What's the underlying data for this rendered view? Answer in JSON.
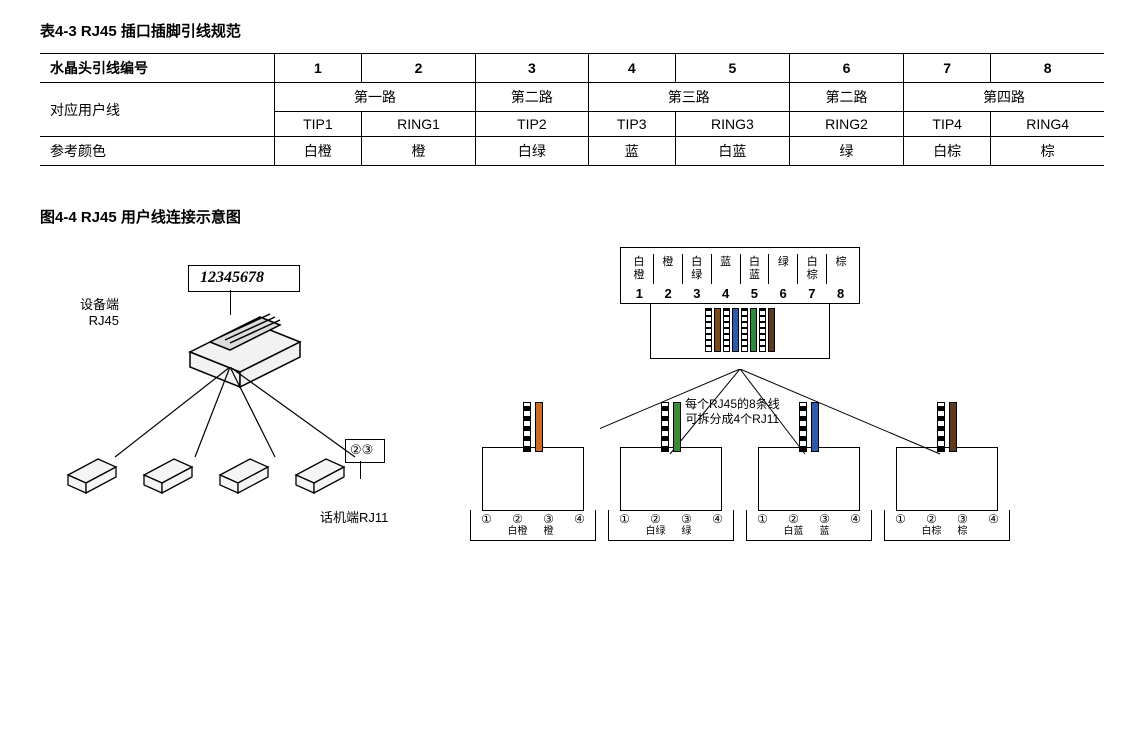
{
  "table_title": "表4-3  RJ45 插口插脚引线规范",
  "spec": {
    "head_label": "水晶头引线编号",
    "pins": [
      "1",
      "2",
      "3",
      "4",
      "5",
      "6",
      "7",
      "8"
    ],
    "row2_label": "对应用户线",
    "routes": [
      "第一路",
      "第二路",
      "第三路",
      "第二路",
      "第四路"
    ],
    "route_spans": [
      2,
      1,
      2,
      1,
      2
    ],
    "signals": [
      "TIP1",
      "RING1",
      "TIP2",
      "TIP3",
      "RING3",
      "RING2",
      "TIP4",
      "RING4"
    ],
    "row4_label": "参考颜色",
    "colors": [
      "白橙",
      "橙",
      "白绿",
      "蓝",
      "白蓝",
      "绿",
      "白棕",
      "棕"
    ]
  },
  "figure_title": "图4-4  RJ45 用户线连接示意图",
  "left": {
    "device_label_l1": "设备端",
    "device_label_l2": "RJ45",
    "pin_label": "12345678",
    "circled_23": "②③",
    "phone_label": "话机端RJ11"
  },
  "right": {
    "port_colors_l1": [
      "白",
      "橙",
      "白",
      "蓝",
      "白",
      "绿",
      "白",
      "棕"
    ],
    "port_colors_l2": [
      "橙",
      "",
      "绿",
      "",
      "蓝",
      "",
      "棕",
      ""
    ],
    "port_nums": [
      "1",
      "2",
      "3",
      "4",
      "5",
      "6",
      "7",
      "8"
    ],
    "wire_fills": [
      "#fff",
      "#7a4a1a",
      "#fff",
      "#2e5aac",
      "#fff",
      "#2e8b3d",
      "#fff",
      "#5b3a1e"
    ],
    "wire_stripes": [
      true,
      false,
      true,
      false,
      true,
      false,
      true,
      false
    ],
    "note_l1": "每个RJ45的8条线",
    "note_l2": "可拆分成4个RJ11",
    "rj11": [
      {
        "colors": [
          "",
          "白橙",
          "橙",
          ""
        ],
        "w2": "stripe",
        "w3": "#c86a2a"
      },
      {
        "colors": [
          "",
          "白绿",
          "绿",
          ""
        ],
        "w2": "stripe",
        "w3": "#3a8a3a"
      },
      {
        "colors": [
          "",
          "白蓝",
          "蓝",
          ""
        ],
        "w2": "stripe",
        "w3": "#2e5aac"
      },
      {
        "colors": [
          "",
          "白棕",
          "棕",
          ""
        ],
        "w2": "stripe",
        "w3": "#5b3a1e"
      }
    ],
    "rj11_nums": [
      "①",
      "②",
      "③",
      "④"
    ]
  }
}
